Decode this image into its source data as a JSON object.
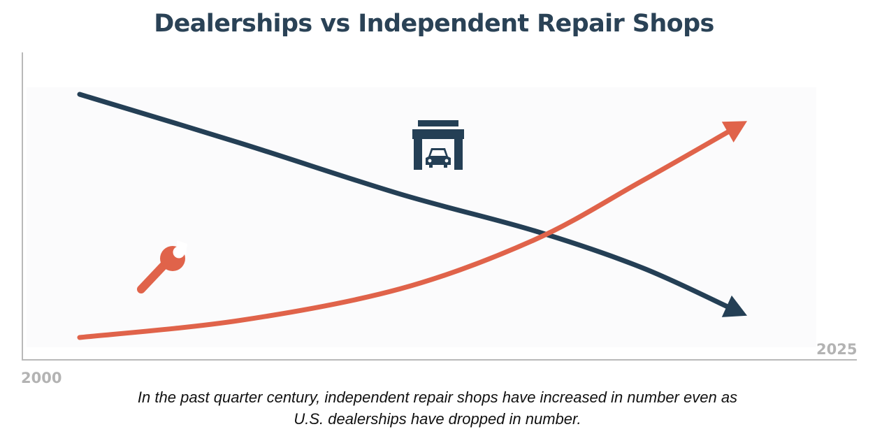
{
  "chart_data": {
    "type": "line",
    "title": "Dealerships vs Independent Repair Shops",
    "x_start_label": "2000",
    "x_end_label": "2025",
    "xlim": [
      2000,
      2025
    ],
    "ylim": [
      0,
      100
    ],
    "grid": false,
    "series": [
      {
        "name": "U.S. dealerships",
        "icon": "garage-car-icon",
        "color": "#243f55",
        "trend": "decreasing",
        "x": [
          2000,
          2006,
          2012,
          2017,
          2021,
          2025
        ],
        "values": [
          100,
          80,
          59,
          44,
          29,
          9
        ]
      },
      {
        "name": "Independent repair shops",
        "icon": "wrench-icon",
        "color": "#e0634a",
        "trend": "increasing",
        "x": [
          2000,
          2006,
          2012,
          2017,
          2021,
          2025
        ],
        "values": [
          0,
          7,
          20,
          40,
          64,
          89
        ]
      }
    ],
    "caption_lines": [
      "In the past quarter century, independent repair shops have increased in number even as",
      "U.S. dealerships have dropped in number."
    ]
  }
}
